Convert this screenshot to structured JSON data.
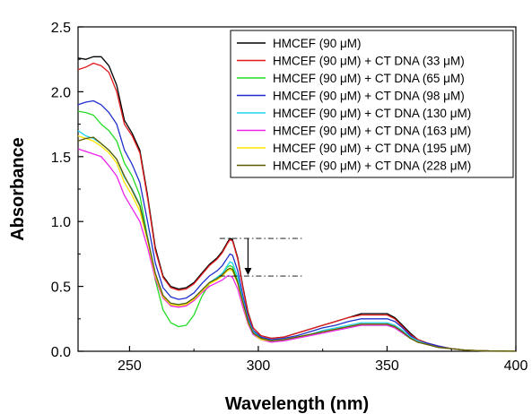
{
  "chart_data": {
    "type": "line",
    "xlabel": "Wavelength (nm)",
    "ylabel": "Absorbance",
    "xlim": [
      230,
      400
    ],
    "ylim": [
      0.0,
      2.5
    ],
    "xticks": [
      250,
      300,
      350,
      400
    ],
    "xtick_labels": [
      "250",
      "300",
      "350",
      "400"
    ],
    "yticks": [
      0.0,
      0.5,
      1.0,
      1.5,
      2.0,
      2.5
    ],
    "ytick_labels": [
      "0.0",
      "0.5",
      "1.0",
      "1.5",
      "2.0",
      "2.5"
    ],
    "grid": false,
    "legend_position": "top-right",
    "annotation": "downward arrow at ~289 nm between dashed lines at 0.87 and 0.58 indicating hypochromism",
    "x": [
      230,
      233,
      236,
      239,
      242,
      245,
      248,
      251,
      254,
      257,
      260,
      263,
      266,
      269,
      272,
      275,
      278,
      281,
      284,
      286,
      288,
      289,
      290,
      292,
      294,
      296,
      298,
      301,
      305,
      310,
      315,
      320,
      325,
      330,
      335,
      340,
      345,
      350,
      353,
      356,
      359,
      362,
      366,
      370,
      375,
      380,
      385,
      390,
      395,
      400
    ],
    "series": [
      {
        "name": "HMCEF (90 μM)",
        "color": "#000000",
        "values": [
          2.26,
          2.25,
          2.27,
          2.27,
          2.2,
          2.05,
          1.78,
          1.68,
          1.55,
          1.2,
          0.8,
          0.58,
          0.5,
          0.48,
          0.49,
          0.53,
          0.6,
          0.67,
          0.72,
          0.77,
          0.84,
          0.87,
          0.86,
          0.72,
          0.5,
          0.3,
          0.18,
          0.12,
          0.1,
          0.11,
          0.14,
          0.17,
          0.2,
          0.23,
          0.26,
          0.29,
          0.29,
          0.29,
          0.26,
          0.2,
          0.14,
          0.09,
          0.06,
          0.04,
          0.02,
          0.01,
          0.005,
          0.003,
          0.002,
          0.001
        ]
      },
      {
        "name": "HMCEF (90 μM) + CT DNA (33 μM)",
        "color": "#e31a1c",
        "values": [
          2.17,
          2.19,
          2.22,
          2.2,
          2.15,
          2.0,
          1.75,
          1.66,
          1.53,
          1.18,
          0.78,
          0.57,
          0.49,
          0.47,
          0.48,
          0.52,
          0.59,
          0.66,
          0.71,
          0.76,
          0.83,
          0.86,
          0.85,
          0.71,
          0.49,
          0.29,
          0.18,
          0.12,
          0.1,
          0.11,
          0.14,
          0.17,
          0.2,
          0.23,
          0.26,
          0.28,
          0.28,
          0.28,
          0.25,
          0.19,
          0.13,
          0.09,
          0.06,
          0.04,
          0.02,
          0.01,
          0.005,
          0.003,
          0.002,
          0.001
        ]
      },
      {
        "name": "HMCEF (90 μM) + CT DNA (65 μM)",
        "color": "#22dd22",
        "values": [
          1.85,
          1.84,
          1.82,
          1.75,
          1.7,
          1.62,
          1.45,
          1.35,
          1.2,
          0.88,
          0.55,
          0.32,
          0.22,
          0.19,
          0.2,
          0.28,
          0.42,
          0.52,
          0.57,
          0.6,
          0.65,
          0.66,
          0.65,
          0.54,
          0.37,
          0.22,
          0.13,
          0.09,
          0.08,
          0.09,
          0.11,
          0.13,
          0.15,
          0.17,
          0.19,
          0.2,
          0.2,
          0.2,
          0.18,
          0.14,
          0.1,
          0.07,
          0.05,
          0.03,
          0.02,
          0.01,
          0.005,
          0.003,
          0.002,
          0.001
        ]
      },
      {
        "name": "HMCEF (90 μM) + CT DNA (98 μM)",
        "color": "#1f2fcc",
        "values": [
          1.9,
          1.92,
          1.93,
          1.9,
          1.84,
          1.75,
          1.55,
          1.44,
          1.3,
          1.0,
          0.68,
          0.49,
          0.42,
          0.4,
          0.41,
          0.45,
          0.52,
          0.58,
          0.62,
          0.66,
          0.72,
          0.75,
          0.74,
          0.62,
          0.43,
          0.26,
          0.16,
          0.11,
          0.09,
          0.1,
          0.12,
          0.15,
          0.18,
          0.2,
          0.23,
          0.25,
          0.25,
          0.25,
          0.23,
          0.18,
          0.12,
          0.08,
          0.06,
          0.04,
          0.02,
          0.01,
          0.005,
          0.003,
          0.002,
          0.001
        ]
      },
      {
        "name": "HMCEF (90 μM) + CT DNA (130 μM)",
        "color": "#22d3ee",
        "values": [
          1.7,
          1.66,
          1.64,
          1.6,
          1.55,
          1.48,
          1.34,
          1.25,
          1.13,
          0.88,
          0.6,
          0.43,
          0.37,
          0.36,
          0.37,
          0.41,
          0.47,
          0.53,
          0.57,
          0.6,
          0.66,
          0.69,
          0.68,
          0.57,
          0.4,
          0.24,
          0.15,
          0.1,
          0.08,
          0.09,
          0.11,
          0.13,
          0.16,
          0.18,
          0.2,
          0.22,
          0.22,
          0.22,
          0.2,
          0.16,
          0.11,
          0.08,
          0.05,
          0.03,
          0.02,
          0.01,
          0.005,
          0.003,
          0.002,
          0.001
        ]
      },
      {
        "name": "HMCEF (90 μM) + CT DNA (163 μM)",
        "color": "#ee22ee",
        "values": [
          1.56,
          1.54,
          1.52,
          1.5,
          1.43,
          1.35,
          1.2,
          1.1,
          1.0,
          0.8,
          0.56,
          0.41,
          0.35,
          0.34,
          0.35,
          0.39,
          0.45,
          0.5,
          0.53,
          0.55,
          0.58,
          0.58,
          0.57,
          0.48,
          0.34,
          0.21,
          0.13,
          0.09,
          0.07,
          0.08,
          0.1,
          0.12,
          0.14,
          0.16,
          0.18,
          0.2,
          0.2,
          0.2,
          0.18,
          0.14,
          0.1,
          0.07,
          0.05,
          0.03,
          0.02,
          0.01,
          0.005,
          0.003,
          0.002,
          0.001
        ]
      },
      {
        "name": "HMCEF (90 μM) + CT DNA (195 μM)",
        "color": "#ffe600",
        "values": [
          1.66,
          1.64,
          1.62,
          1.58,
          1.53,
          1.45,
          1.3,
          1.2,
          1.08,
          0.85,
          0.58,
          0.42,
          0.36,
          0.35,
          0.36,
          0.4,
          0.46,
          0.52,
          0.55,
          0.58,
          0.62,
          0.63,
          0.62,
          0.52,
          0.37,
          0.22,
          0.14,
          0.09,
          0.08,
          0.09,
          0.11,
          0.13,
          0.15,
          0.17,
          0.19,
          0.21,
          0.21,
          0.21,
          0.19,
          0.15,
          0.1,
          0.07,
          0.05,
          0.03,
          0.02,
          0.01,
          0.005,
          0.003,
          0.002,
          0.001
        ]
      },
      {
        "name": "HMCEF (90 μM) + CT DNA (228 μM)",
        "color": "#5c5a00",
        "values": [
          1.62,
          1.64,
          1.65,
          1.6,
          1.55,
          1.48,
          1.35,
          1.24,
          1.12,
          0.87,
          0.6,
          0.43,
          0.37,
          0.36,
          0.37,
          0.41,
          0.47,
          0.53,
          0.56,
          0.59,
          0.63,
          0.64,
          0.63,
          0.53,
          0.38,
          0.23,
          0.14,
          0.1,
          0.08,
          0.09,
          0.11,
          0.13,
          0.15,
          0.17,
          0.19,
          0.21,
          0.21,
          0.21,
          0.19,
          0.15,
          0.1,
          0.07,
          0.05,
          0.03,
          0.02,
          0.01,
          0.005,
          0.003,
          0.002,
          0.001
        ]
      }
    ]
  }
}
